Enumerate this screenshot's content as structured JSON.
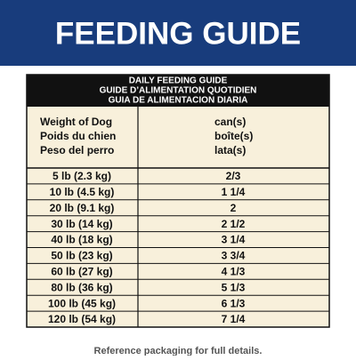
{
  "header": {
    "title": "FEEDING GUIDE"
  },
  "table": {
    "caption": [
      "DAILY FEEDING GUIDE",
      "GUIDE D’ALIMENTATION QUOTIDIEN",
      "GUIA DE ALIMENTACION DIARIA"
    ],
    "columns": [
      [
        "Weight of Dog",
        "Poids du chien",
        "Peso del perro"
      ],
      [
        "can(s)",
        "boîte(s)",
        "lata(s)"
      ]
    ],
    "rows": [
      [
        "5 lb (2.3 kg)",
        "2/3"
      ],
      [
        "10 lb (4.5 kg)",
        "1 1/4"
      ],
      [
        "20 lb (9.1 kg)",
        "2"
      ],
      [
        "30 lb (14 kg)",
        "2 1/2"
      ],
      [
        "40 lb (18 kg)",
        "3 1/4"
      ],
      [
        "50 lb (23 kg)",
        "3 3/4"
      ],
      [
        "60 lb (27 kg)",
        "4 1/3"
      ],
      [
        "80 lb (36 kg)",
        "5 1/3"
      ],
      [
        "100 lb (45 kg)",
        "6 1/3"
      ],
      [
        "120 lb (54 kg)",
        "7 1/4"
      ]
    ]
  },
  "footer": "Reference packaging for full details."
}
